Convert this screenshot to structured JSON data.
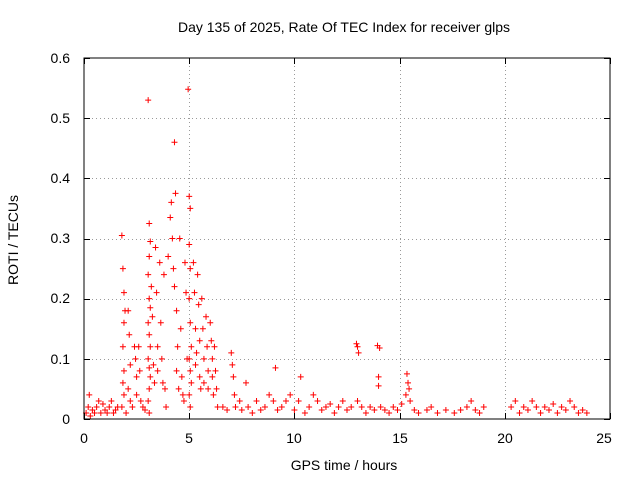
{
  "chart_data": {
    "type": "scatter",
    "title": "Day 135 of 2025, Rate Of TEC Index for receiver glps",
    "xlabel": "GPS time / hours",
    "ylabel": "ROTI / TECUs",
    "xlim": [
      0,
      25
    ],
    "ylim": [
      0,
      0.6
    ],
    "xticks": [
      0,
      5,
      10,
      15,
      20,
      25
    ],
    "yticks": [
      0,
      0.1,
      0.2,
      0.3,
      0.4,
      0.5,
      0.6
    ],
    "xtick_labels": [
      "0",
      "5",
      "10",
      "15",
      "20",
      "25"
    ],
    "ytick_labels": [
      "0",
      "0.1",
      "0.2",
      "0.3",
      "0.4",
      "0.5",
      "0.6"
    ],
    "grid": true,
    "marker": "plus",
    "color": "#ff0000",
    "series": [
      {
        "name": "ROTI",
        "points": [
          [
            0.1,
            0.01
          ],
          [
            0.2,
            0.02
          ],
          [
            0.25,
            0.04
          ],
          [
            0.3,
            0.005
          ],
          [
            0.4,
            0.015
          ],
          [
            0.5,
            0.01
          ],
          [
            0.6,
            0.02
          ],
          [
            0.7,
            0.03
          ],
          [
            0.8,
            0.01
          ],
          [
            0.9,
            0.025
          ],
          [
            1.0,
            0.015
          ],
          [
            1.1,
            0.01
          ],
          [
            1.2,
            0.02
          ],
          [
            1.3,
            0.03
          ],
          [
            1.4,
            0.01
          ],
          [
            1.5,
            0.015
          ],
          [
            1.6,
            0.02
          ],
          [
            1.8,
            0.305
          ],
          [
            1.85,
            0.25
          ],
          [
            1.9,
            0.21
          ],
          [
            1.95,
            0.18
          ],
          [
            1.9,
            0.16
          ],
          [
            1.85,
            0.12
          ],
          [
            1.9,
            0.08
          ],
          [
            1.85,
            0.06
          ],
          [
            1.9,
            0.04
          ],
          [
            1.8,
            0.02
          ],
          [
            2.0,
            0.01
          ],
          [
            2.1,
            0.18
          ],
          [
            2.15,
            0.14
          ],
          [
            2.2,
            0.09
          ],
          [
            2.1,
            0.05
          ],
          [
            2.2,
            0.03
          ],
          [
            2.3,
            0.02
          ],
          [
            2.4,
            0.12
          ],
          [
            2.45,
            0.1
          ],
          [
            2.5,
            0.07
          ],
          [
            2.5,
            0.04
          ],
          [
            2.6,
            0.12
          ],
          [
            2.65,
            0.08
          ],
          [
            2.7,
            0.03
          ],
          [
            2.8,
            0.02
          ],
          [
            2.9,
            0.015
          ],
          [
            3.05,
            0.53
          ],
          [
            3.1,
            0.325
          ],
          [
            3.15,
            0.295
          ],
          [
            3.1,
            0.27
          ],
          [
            3.05,
            0.24
          ],
          [
            3.1,
            0.2
          ],
          [
            3.15,
            0.185
          ],
          [
            3.05,
            0.16
          ],
          [
            3.1,
            0.14
          ],
          [
            3.15,
            0.12
          ],
          [
            3.05,
            0.1
          ],
          [
            3.1,
            0.085
          ],
          [
            3.15,
            0.07
          ],
          [
            3.1,
            0.05
          ],
          [
            3.05,
            0.03
          ],
          [
            3.1,
            0.01
          ],
          [
            3.2,
            0.22
          ],
          [
            3.25,
            0.17
          ],
          [
            3.3,
            0.09
          ],
          [
            3.35,
            0.06
          ],
          [
            3.4,
            0.285
          ],
          [
            3.45,
            0.21
          ],
          [
            3.5,
            0.12
          ],
          [
            3.5,
            0.08
          ],
          [
            3.6,
            0.26
          ],
          [
            3.65,
            0.16
          ],
          [
            3.7,
            0.1
          ],
          [
            3.75,
            0.06
          ],
          [
            3.8,
            0.24
          ],
          [
            3.85,
            0.05
          ],
          [
            3.9,
            0.02
          ],
          [
            4.0,
            0.27
          ],
          [
            4.1,
            0.335
          ],
          [
            4.15,
            0.36
          ],
          [
            4.2,
            0.3
          ],
          [
            4.25,
            0.25
          ],
          [
            4.3,
            0.46
          ],
          [
            4.35,
            0.375
          ],
          [
            4.3,
            0.22
          ],
          [
            4.4,
            0.18
          ],
          [
            4.45,
            0.12
          ],
          [
            4.4,
            0.08
          ],
          [
            4.5,
            0.05
          ],
          [
            4.55,
            0.3
          ],
          [
            4.6,
            0.15
          ],
          [
            4.65,
            0.07
          ],
          [
            4.7,
            0.04
          ],
          [
            4.75,
            0.03
          ],
          [
            4.8,
            0.26
          ],
          [
            4.85,
            0.21
          ],
          [
            4.9,
            0.1
          ],
          [
            4.95,
            0.548
          ],
          [
            5.0,
            0.37
          ],
          [
            5.05,
            0.35
          ],
          [
            5.0,
            0.29
          ],
          [
            5.05,
            0.25
          ],
          [
            5.0,
            0.2
          ],
          [
            5.05,
            0.16
          ],
          [
            5.1,
            0.12
          ],
          [
            5.0,
            0.1
          ],
          [
            5.05,
            0.08
          ],
          [
            5.1,
            0.06
          ],
          [
            5.0,
            0.04
          ],
          [
            5.05,
            0.02
          ],
          [
            5.2,
            0.26
          ],
          [
            5.25,
            0.21
          ],
          [
            5.3,
            0.15
          ],
          [
            5.35,
            0.11
          ],
          [
            5.3,
            0.09
          ],
          [
            5.4,
            0.24
          ],
          [
            5.45,
            0.19
          ],
          [
            5.5,
            0.13
          ],
          [
            5.5,
            0.07
          ],
          [
            5.55,
            0.05
          ],
          [
            5.6,
            0.2
          ],
          [
            5.65,
            0.15
          ],
          [
            5.7,
            0.1
          ],
          [
            5.7,
            0.06
          ],
          [
            5.8,
            0.17
          ],
          [
            5.85,
            0.12
          ],
          [
            5.9,
            0.08
          ],
          [
            5.9,
            0.05
          ],
          [
            6.0,
            0.16
          ],
          [
            6.05,
            0.13
          ],
          [
            6.1,
            0.1
          ],
          [
            6.1,
            0.07
          ],
          [
            6.15,
            0.04
          ],
          [
            6.2,
            0.12
          ],
          [
            6.25,
            0.08
          ],
          [
            6.3,
            0.05
          ],
          [
            6.35,
            0.02
          ],
          [
            6.6,
            0.02
          ],
          [
            6.8,
            0.015
          ],
          [
            7.0,
            0.11
          ],
          [
            7.05,
            0.09
          ],
          [
            7.1,
            0.07
          ],
          [
            7.15,
            0.04
          ],
          [
            7.2,
            0.02
          ],
          [
            7.4,
            0.03
          ],
          [
            7.5,
            0.015
          ],
          [
            7.7,
            0.06
          ],
          [
            7.8,
            0.02
          ],
          [
            8.0,
            0.01
          ],
          [
            8.2,
            0.03
          ],
          [
            8.4,
            0.015
          ],
          [
            8.6,
            0.02
          ],
          [
            8.8,
            0.04
          ],
          [
            9.0,
            0.03
          ],
          [
            9.1,
            0.085
          ],
          [
            9.2,
            0.015
          ],
          [
            9.4,
            0.02
          ],
          [
            9.6,
            0.03
          ],
          [
            9.8,
            0.04
          ],
          [
            10.0,
            0.015
          ],
          [
            10.2,
            0.03
          ],
          [
            10.3,
            0.07
          ],
          [
            10.5,
            0.01
          ],
          [
            10.7,
            0.02
          ],
          [
            10.9,
            0.04
          ],
          [
            11.1,
            0.03
          ],
          [
            11.3,
            0.015
          ],
          [
            11.5,
            0.02
          ],
          [
            11.7,
            0.025
          ],
          [
            11.9,
            0.01
          ],
          [
            12.1,
            0.02
          ],
          [
            12.3,
            0.03
          ],
          [
            12.5,
            0.015
          ],
          [
            12.7,
            0.02
          ],
          [
            12.95,
            0.125
          ],
          [
            13.0,
            0.12
          ],
          [
            13.05,
            0.11
          ],
          [
            13.0,
            0.03
          ],
          [
            13.2,
            0.02
          ],
          [
            13.4,
            0.01
          ],
          [
            13.6,
            0.02
          ],
          [
            13.8,
            0.015
          ],
          [
            13.95,
            0.122
          ],
          [
            14.05,
            0.118
          ],
          [
            14.0,
            0.07
          ],
          [
            14.0,
            0.055
          ],
          [
            14.1,
            0.02
          ],
          [
            14.3,
            0.015
          ],
          [
            14.5,
            0.01
          ],
          [
            14.7,
            0.02
          ],
          [
            14.9,
            0.015
          ],
          [
            15.1,
            0.025
          ],
          [
            15.3,
            0.04
          ],
          [
            15.35,
            0.075
          ],
          [
            15.4,
            0.06
          ],
          [
            15.45,
            0.05
          ],
          [
            15.5,
            0.03
          ],
          [
            15.7,
            0.015
          ],
          [
            15.9,
            0.01
          ],
          [
            16.3,
            0.015
          ],
          [
            16.5,
            0.02
          ],
          [
            16.8,
            0.01
          ],
          [
            17.2,
            0.015
          ],
          [
            17.6,
            0.01
          ],
          [
            17.9,
            0.015
          ],
          [
            18.2,
            0.02
          ],
          [
            18.4,
            0.03
          ],
          [
            18.6,
            0.015
          ],
          [
            18.8,
            0.01
          ],
          [
            19.0,
            0.02
          ],
          [
            20.3,
            0.02
          ],
          [
            20.5,
            0.03
          ],
          [
            20.7,
            0.01
          ],
          [
            20.9,
            0.02
          ],
          [
            21.1,
            0.015
          ],
          [
            21.3,
            0.03
          ],
          [
            21.5,
            0.02
          ],
          [
            21.7,
            0.01
          ],
          [
            21.9,
            0.02
          ],
          [
            22.1,
            0.015
          ],
          [
            22.3,
            0.025
          ],
          [
            22.5,
            0.01
          ],
          [
            22.7,
            0.02
          ],
          [
            22.9,
            0.015
          ],
          [
            23.1,
            0.03
          ],
          [
            23.3,
            0.02
          ],
          [
            23.5,
            0.01
          ],
          [
            23.7,
            0.015
          ],
          [
            23.9,
            0.01
          ]
        ]
      }
    ]
  }
}
